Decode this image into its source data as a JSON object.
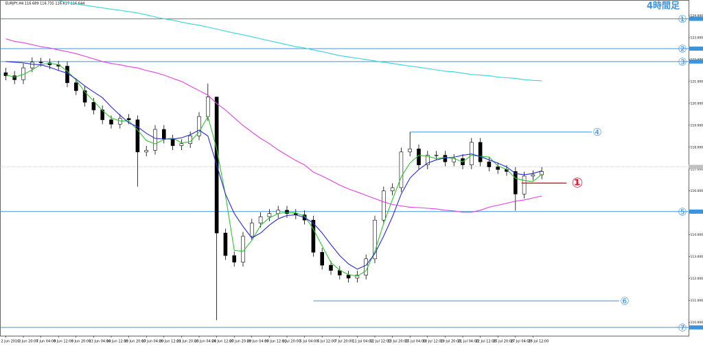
{
  "chart_data": {
    "type": "candlestick",
    "title": "EURJPY,H4  116.689 116.735 116.617 116.644",
    "timeframe_label": "4時間足",
    "categories": [
      "2 Jun 2016",
      null,
      "3 Jun 20:00",
      null,
      "7 Jun 04:00",
      null,
      "8 Jun 12:00",
      null,
      "9 Jun 20:00",
      null,
      "13 Jun 04:00",
      null,
      "14 Jun 12:00",
      null,
      "15 Jun 20:00",
      null,
      "17 Jun 04:00",
      null,
      "20 Jun 12:00",
      null,
      "21 Jun 20:00",
      null,
      "23 Jun 04:00",
      null,
      "24 Jun 12:00",
      null,
      "27 Jun 20:00",
      null,
      "29 Jun 04:00",
      null,
      "30 Jun 12:00",
      null,
      "1 Jul 20:00",
      null,
      "5 Jul 04:00",
      null,
      "6 Jul 12:00",
      null,
      "7 Jul 20:00",
      null,
      "11 Jul 04:00",
      null,
      "12 Jul 12:00",
      null,
      "13 Jul 20:00",
      null,
      "15 Jul 04:00",
      null,
      "18 Jul 12:00",
      null,
      "19 Jul 20:00",
      null,
      "21 Jul 04:00",
      null,
      "22 Jul 12:00",
      null,
      "25 Jul 20:00",
      null,
      "27 Jul 04:00",
      null,
      "28 Jul 12:00",
      null
    ],
    "open": [
      121.4,
      121.26,
      121.08,
      121.62,
      121.88,
      121.85,
      121.76,
      121.7,
      120.94,
      120.58,
      120.05,
      119.7,
      119.25,
      119.05,
      119.31,
      119.25,
      117.78,
      117.86,
      118.81,
      118.37,
      118.07,
      118.16,
      118.52,
      119.4,
      120.29,
      114.08,
      113.05,
      112.75,
      113.93,
      114.53,
      114.82,
      114.97,
      115.12,
      114.97,
      114.91,
      114.67,
      113.2,
      112.61,
      112.37,
      112.16,
      112.02,
      112.16,
      112.9,
      114.67,
      116.0,
      116.15,
      117.78,
      117.92,
      117.19,
      117.63,
      117.63,
      117.33,
      117.48,
      117.19,
      118.22,
      117.33,
      117.1,
      116.98,
      116.89,
      115.86,
      116.68,
      116.74
    ],
    "high": [
      121.62,
      121.48,
      121.82,
      122.1,
      122.08,
      122.05,
      121.94,
      121.9,
      121.14,
      120.78,
      120.25,
      119.9,
      119.45,
      119.51,
      119.51,
      119.45,
      118.06,
      119.01,
      119.01,
      118.57,
      118.36,
      118.72,
      119.6,
      120.9,
      120.3,
      114.28,
      113.25,
      114.13,
      114.73,
      115.02,
      115.17,
      115.32,
      115.32,
      115.17,
      115.11,
      114.87,
      113.4,
      112.81,
      112.57,
      112.36,
      112.36,
      113.1,
      114.87,
      116.2,
      116.35,
      117.98,
      118.69,
      118.12,
      117.83,
      117.83,
      117.83,
      117.68,
      117.68,
      118.42,
      118.42,
      117.53,
      117.3,
      117.18,
      117.09,
      116.88,
      116.94,
      117.09
    ],
    "low": [
      121.06,
      120.88,
      120.88,
      121.42,
      121.68,
      121.56,
      121.5,
      120.74,
      120.38,
      119.85,
      119.5,
      119.05,
      118.85,
      118.85,
      119.05,
      116.2,
      117.58,
      117.66,
      118.17,
      117.87,
      117.87,
      117.96,
      118.32,
      119.2,
      110.1,
      112.85,
      112.55,
      112.55,
      113.73,
      114.33,
      114.62,
      114.77,
      114.77,
      114.71,
      114.47,
      113.0,
      112.41,
      112.17,
      111.96,
      111.82,
      111.82,
      111.96,
      112.7,
      114.47,
      115.8,
      115.95,
      117.58,
      116.99,
      116.99,
      117.43,
      117.13,
      117.13,
      116.99,
      116.99,
      117.13,
      116.9,
      116.78,
      116.69,
      115.1,
      115.66,
      116.48,
      116.54
    ],
    "close": [
      121.26,
      121.08,
      121.62,
      121.88,
      121.85,
      121.76,
      121.7,
      120.94,
      120.58,
      120.05,
      119.7,
      119.25,
      119.05,
      119.31,
      119.25,
      117.78,
      117.86,
      118.81,
      118.37,
      118.07,
      118.16,
      118.52,
      119.4,
      120.29,
      114.08,
      113.05,
      112.75,
      113.93,
      114.53,
      114.82,
      114.97,
      115.12,
      114.97,
      114.91,
      114.67,
      113.2,
      112.61,
      112.37,
      112.16,
      112.02,
      112.16,
      112.9,
      114.67,
      116.0,
      116.15,
      117.78,
      117.92,
      117.19,
      117.63,
      117.63,
      117.33,
      117.48,
      117.19,
      118.22,
      117.33,
      117.1,
      116.98,
      116.89,
      115.86,
      116.68,
      116.74,
      116.89
    ],
    "up_color": "#ffffff",
    "down_color": "#000000",
    "wick_color": "#000000",
    "series": [
      {
        "color": "#2ec52e",
        "values": [
          121.3,
          121.2,
          121.32,
          121.53,
          121.78,
          121.83,
          121.77,
          121.47,
          121.07,
          120.52,
          120.11,
          119.67,
          119.33,
          119.2,
          119.2,
          118.78,
          118.3,
          118.15,
          118.35,
          118.42,
          118.2,
          118.25,
          118.69,
          119.4,
          117.92,
          115.81,
          113.29,
          113.24,
          113.74,
          114.43,
          114.77,
          114.97,
          115.02,
          115.0,
          114.85,
          114.26,
          113.49,
          112.73,
          112.38,
          112.18,
          112.11,
          112.36,
          113.24,
          114.52,
          115.61,
          116.64,
          117.28,
          117.63,
          117.58,
          117.48,
          117.53,
          117.48,
          117.33,
          117.63,
          117.58,
          117.55,
          117.14,
          116.99,
          116.58,
          116.48,
          116.43,
          116.77
        ]
      },
      {
        "color": "#2727d8",
        "values": [
          121.91,
          121.88,
          121.85,
          121.79,
          121.76,
          121.65,
          121.5,
          121.38,
          121.11,
          120.79,
          120.52,
          120.26,
          119.84,
          119.46,
          119.11,
          118.93,
          118.63,
          118.4,
          118.37,
          118.37,
          118.43,
          118.57,
          118.78,
          118.51,
          117.19,
          115.86,
          114.97,
          114.38,
          113.85,
          114.08,
          114.44,
          114.73,
          114.88,
          114.91,
          114.79,
          114.53,
          114.08,
          113.55,
          113.05,
          112.67,
          112.43,
          112.61,
          113.14,
          113.94,
          114.82,
          115.86,
          116.59,
          116.98,
          117.27,
          117.42,
          117.51,
          117.54,
          117.63,
          117.69,
          117.57,
          117.42,
          117.27,
          117.1,
          116.8,
          116.74,
          116.8,
          116.92
        ]
      },
      {
        "color": "#e23fe0",
        "values": [
          122.95,
          122.83,
          122.77,
          122.68,
          122.59,
          122.53,
          122.44,
          122.36,
          122.27,
          122.15,
          122.03,
          121.91,
          121.82,
          121.76,
          121.68,
          121.62,
          121.5,
          121.41,
          121.29,
          121.14,
          121.0,
          120.79,
          120.58,
          120.38,
          119.99,
          119.7,
          119.34,
          118.99,
          118.69,
          118.4,
          118.16,
          117.87,
          117.63,
          117.39,
          117.19,
          116.86,
          116.68,
          116.48,
          116.27,
          116.09,
          115.95,
          115.8,
          115.65,
          115.5,
          115.38,
          115.32,
          115.26,
          115.24,
          115.21,
          115.18,
          115.12,
          115.09,
          115.03,
          115.03,
          115.12,
          115.26,
          115.35,
          115.44,
          115.53,
          115.59,
          115.68,
          115.77
        ]
      },
      {
        "color": "#2fd6d8",
        "values": [
          null,
          null,
          null,
          null,
          null,
          null,
          124.69,
          124.6,
          124.54,
          124.48,
          124.42,
          124.36,
          124.3,
          124.25,
          124.19,
          124.13,
          124.04,
          123.95,
          123.86,
          123.8,
          123.71,
          123.63,
          123.57,
          123.48,
          123.39,
          123.3,
          123.21,
          123.13,
          123.04,
          122.95,
          122.86,
          122.77,
          122.68,
          122.59,
          122.53,
          122.44,
          122.36,
          122.27,
          122.18,
          122.12,
          122.06,
          122.0,
          121.94,
          121.88,
          121.82,
          121.76,
          121.7,
          121.65,
          121.59,
          121.53,
          121.47,
          121.44,
          121.38,
          121.32,
          121.29,
          121.26,
          121.2,
          121.17,
          121.14,
          121.08,
          121.05,
          121.03
        ]
      }
    ],
    "levels": [
      {
        "label": "①",
        "value": 123.86,
        "color": "#3d93dc"
      },
      {
        "label": "②",
        "value": 122.5,
        "color": "#3d93dc"
      },
      {
        "label": "③",
        "value": 121.91,
        "color": "#3d93dc"
      },
      {
        "label": "④",
        "value": 118.69,
        "from": 46,
        "color": "#3d93dc"
      },
      {
        "label": "⑤",
        "value": 115.06,
        "color": "#3d93dc"
      },
      {
        "label": "⑥",
        "value": 110.98,
        "from": 35,
        "color": "#3d93dc"
      },
      {
        "label": "⑦",
        "value": 109.77,
        "color": "#3d93dc"
      }
    ],
    "marker": {
      "label": "①",
      "value": 116.36,
      "from": 59,
      "color": "#e0203a"
    },
    "current_price": 117.1,
    "ylim": [
      109.39,
      124.72
    ],
    "yticks": [
      {
        "value": 110,
        "label": "110.000"
      },
      {
        "value": 111,
        "label": "111.000"
      },
      {
        "value": 112,
        "label": "112.000"
      },
      {
        "value": 113,
        "label": "113.000"
      },
      {
        "value": 114,
        "label": "114.000"
      },
      {
        "value": 115,
        "label": "115.000"
      },
      {
        "value": 116,
        "label": "116.000"
      },
      {
        "value": 117,
        "label": "117.000"
      },
      {
        "value": 118,
        "label": "118.000"
      },
      {
        "value": 119,
        "label": "119.000"
      },
      {
        "value": 120,
        "label": "120.000"
      },
      {
        "value": 121,
        "label": "121.000"
      },
      {
        "value": 122,
        "label": "122.000"
      },
      {
        "value": 123,
        "label": "123.000"
      },
      {
        "value": 124,
        "label": "124.000"
      }
    ]
  }
}
